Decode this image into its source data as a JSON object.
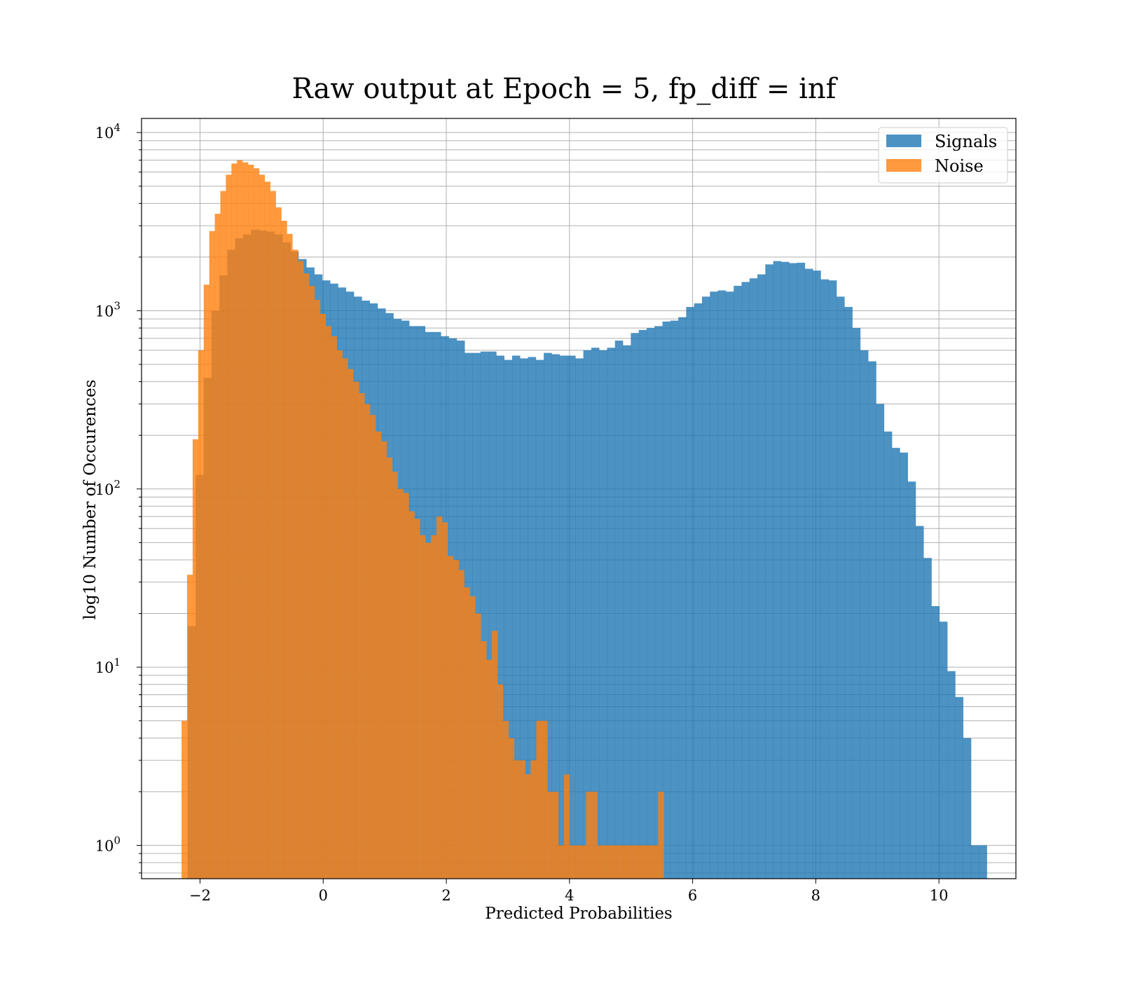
{
  "chart_data": {
    "type": "bar",
    "title": "Raw output at Epoch = 5, fp_diff = inf",
    "xlabel": "Predicted Probabilities",
    "ylabel": "log10 Number of Occurences",
    "xlim": [
      -2.95,
      11.25
    ],
    "ylim": [
      0.65,
      12000
    ],
    "y_scale": "log",
    "grid": true,
    "legend_position": "top-right",
    "x_ticks": [
      -2,
      0,
      2,
      4,
      6,
      8,
      10
    ],
    "x_tick_labels": [
      "−2",
      "0",
      "2",
      "4",
      "6",
      "8",
      "10"
    ],
    "y_ticks": [
      1,
      10,
      100,
      1000,
      10000
    ],
    "y_tick_base": "10",
    "y_tick_exponents": [
      "0",
      "1",
      "2",
      "3",
      "4"
    ],
    "series": [
      {
        "name": "Signals",
        "color": "#1f77b4",
        "opacity": 0.8,
        "bin_start": -2.2,
        "bin_width": 0.1285,
        "values": [
          17,
          120,
          420,
          1000,
          1580,
          2200,
          2550,
          2680,
          2850,
          2820,
          2780,
          2680,
          2420,
          2150,
          1950,
          1750,
          1600,
          1480,
          1420,
          1350,
          1280,
          1200,
          1140,
          1100,
          1030,
          970,
          900,
          880,
          820,
          820,
          760,
          760,
          720,
          700,
          680,
          580,
          580,
          590,
          590,
          560,
          530,
          560,
          540,
          550,
          530,
          580,
          570,
          560,
          560,
          540,
          600,
          620,
          600,
          620,
          680,
          640,
          750,
          780,
          800,
          820,
          870,
          880,
          920,
          1050,
          1100,
          1200,
          1280,
          1300,
          1280,
          1380,
          1450,
          1520,
          1600,
          1820,
          1900,
          1880,
          1850,
          1860,
          1720,
          1680,
          1500,
          1480,
          1200,
          1050,
          800,
          600,
          520,
          300,
          210,
          170,
          160,
          110,
          62,
          41,
          22,
          18,
          9.5,
          6.8,
          4,
          1,
          1
        ]
      },
      {
        "name": "Noise",
        "color": "#ff7f0e",
        "opacity": 0.8,
        "bin_start": -2.3,
        "bin_width": 0.09,
        "values": [
          5,
          33,
          190,
          600,
          1400,
          2800,
          3500,
          4700,
          5800,
          6700,
          7000,
          6800,
          6600,
          6300,
          5800,
          5300,
          4700,
          3800,
          3200,
          2700,
          2200,
          1900,
          1620,
          1380,
          1150,
          960,
          820,
          720,
          600,
          540,
          470,
          400,
          345,
          300,
          260,
          210,
          185,
          150,
          125,
          100,
          95,
          75,
          68,
          55,
          50,
          55,
          70,
          65,
          42,
          40,
          35,
          28,
          25,
          20,
          14,
          11,
          16,
          8,
          5,
          4,
          3,
          3,
          2.5,
          3,
          5,
          5,
          2,
          2,
          1,
          2.5,
          1,
          1,
          1,
          2,
          2,
          1,
          1,
          1,
          1,
          1,
          1,
          1,
          1,
          1,
          1,
          1,
          2
        ]
      }
    ]
  }
}
